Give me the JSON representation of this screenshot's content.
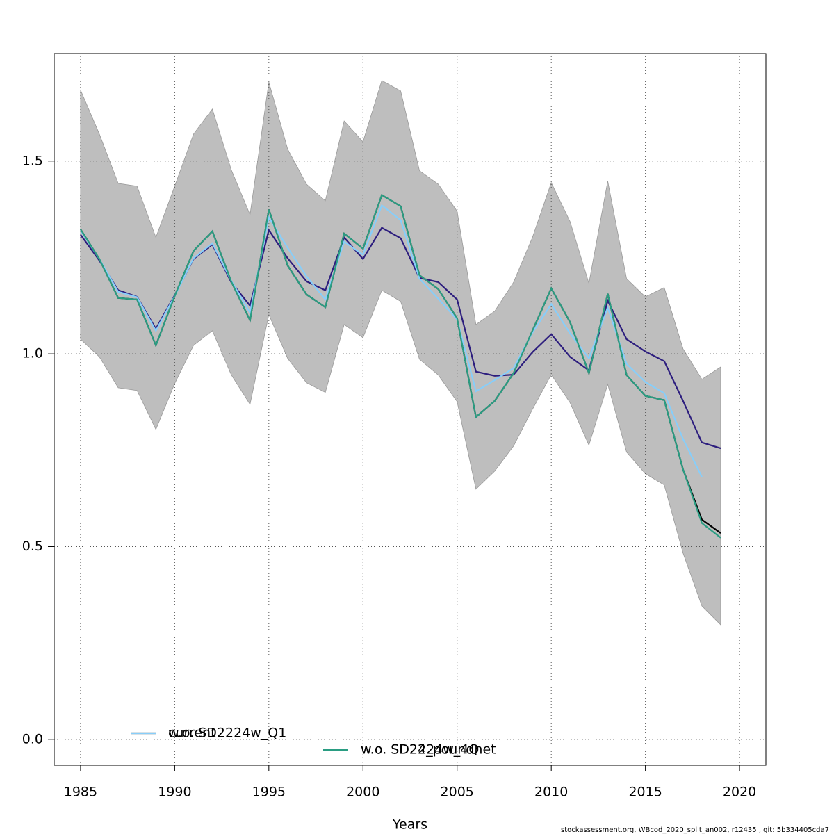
{
  "chart_data": {
    "type": "line",
    "x_label": "Years",
    "footer": "stockassessment.org, WBcod_2020_split_an002, r12435 , git: 5b334405cda7",
    "x": [
      1985,
      1986,
      1987,
      1988,
      1989,
      1990,
      1991,
      1992,
      1993,
      1994,
      1995,
      1996,
      1997,
      1998,
      1999,
      2000,
      2001,
      2002,
      2003,
      2004,
      2005,
      2006,
      2007,
      2008,
      2009,
      2010,
      2011,
      2012,
      2013,
      2014,
      2015,
      2016,
      2017,
      2018,
      2019
    ],
    "band": {
      "color": "#bebebe",
      "upper": [
        1.684,
        1.57,
        1.442,
        1.435,
        1.302,
        1.435,
        1.57,
        1.635,
        1.478,
        1.361,
        1.705,
        1.531,
        1.44,
        1.397,
        1.604,
        1.55,
        1.709,
        1.682,
        1.475,
        1.44,
        1.37,
        1.076,
        1.111,
        1.186,
        1.302,
        1.444,
        1.343,
        1.183,
        1.448,
        1.195,
        1.148,
        1.172,
        1.013,
        0.934,
        0.966
      ],
      "lower": [
        1.038,
        0.992,
        0.912,
        0.905,
        0.804,
        0.923,
        1.022,
        1.06,
        0.946,
        0.869,
        1.102,
        0.988,
        0.925,
        0.9,
        1.076,
        1.042,
        1.165,
        1.136,
        0.986,
        0.945,
        0.876,
        0.649,
        0.696,
        0.761,
        0.856,
        0.946,
        0.873,
        0.763,
        0.921,
        0.745,
        0.689,
        0.66,
        0.483,
        0.346,
        0.297
      ]
    },
    "series": [
      {
        "name": "current",
        "color": "#000000",
        "values": [
          1.323,
          1.246,
          1.145,
          1.141,
          1.022,
          1.15,
          1.267,
          1.318,
          1.188,
          1.087,
          1.374,
          1.229,
          1.154,
          1.121,
          1.312,
          1.273,
          1.412,
          1.383,
          1.204,
          1.168,
          1.092,
          0.836,
          0.878,
          0.95,
          1.06,
          1.17,
          1.082,
          0.95,
          1.156,
          0.945,
          0.891,
          0.88,
          0.7,
          0.57,
          0.535
        ]
      },
      {
        "name": "w.o. SD2224w_4Q",
        "color": "#2d1e7e",
        "values": [
          1.309,
          1.242,
          1.165,
          1.148,
          1.065,
          1.152,
          1.246,
          1.284,
          1.186,
          1.125,
          1.321,
          1.248,
          1.188,
          1.165,
          1.302,
          1.246,
          1.327,
          1.3,
          1.197,
          1.186,
          1.141,
          0.954,
          0.943,
          0.946,
          1.004,
          1.051,
          0.992,
          0.957,
          1.138,
          1.038,
          1.006,
          0.981,
          0.878,
          0.77,
          0.755
        ]
      },
      {
        "name": "w.o. SD2224w_Q1",
        "color": "#87cefa",
        "values": [
          1.32,
          1.246,
          1.161,
          1.147,
          1.06,
          1.15,
          1.248,
          1.287,
          1.19,
          1.107,
          1.354,
          1.275,
          1.201,
          1.141,
          1.291,
          1.257,
          1.385,
          1.347,
          1.195,
          1.143,
          1.089,
          0.903,
          0.932,
          0.963,
          1.055,
          1.129,
          1.053,
          0.988,
          1.12,
          0.974,
          0.927,
          0.898,
          0.779,
          0.681,
          null
        ]
      },
      {
        "name": "w.o. SD24_poundnet",
        "color": "#2a9d82",
        "values": [
          1.323,
          1.246,
          1.145,
          1.141,
          1.022,
          1.15,
          1.267,
          1.318,
          1.188,
          1.087,
          1.374,
          1.229,
          1.154,
          1.121,
          1.312,
          1.273,
          1.412,
          1.383,
          1.204,
          1.168,
          1.092,
          0.836,
          0.878,
          0.95,
          1.06,
          1.17,
          1.082,
          0.95,
          1.156,
          0.945,
          0.891,
          0.88,
          0.7,
          0.561,
          0.523
        ]
      }
    ],
    "xlim": [
      1983.6,
      2021.4
    ],
    "xticks": [
      1985,
      1990,
      1995,
      2000,
      2005,
      2010,
      2015,
      2020
    ],
    "ylim": [
      -0.067,
      1.779
    ],
    "yticks": [
      {
        "value": 0,
        "label": "0.0"
      },
      0.5,
      {
        "value": 1,
        "label": "1.0"
      },
      1.5
    ],
    "grid": true
  }
}
